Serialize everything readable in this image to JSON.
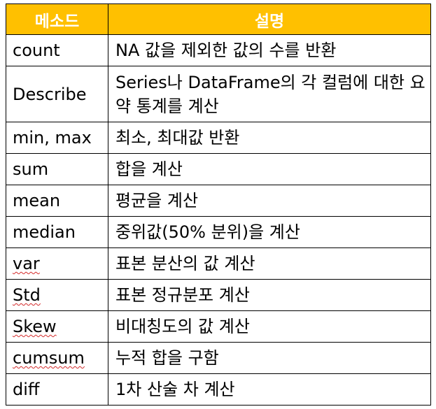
{
  "header": {
    "method": "메소드",
    "description": "설명"
  },
  "rows": [
    {
      "method": "count",
      "description": "NA 값을 제외한 값의 수를 반환"
    },
    {
      "method": "Describe",
      "description": "Series나 DataFrame의 각 컬럼에 대한 요약 통계를 계산"
    },
    {
      "method": "min, max",
      "description": "최소, 최대값 반환"
    },
    {
      "method": "sum",
      "description": "합을 계산"
    },
    {
      "method": "mean",
      "description": "평균을 계산"
    },
    {
      "method": "median",
      "description": "중위값(50% 분위)을 계산"
    },
    {
      "method": "var",
      "description": "표본 분산의 값 계산"
    },
    {
      "method": "Std",
      "description": "표본 정규분포 계산"
    },
    {
      "method": "Skew",
      "description": "비대칭도의 값 계산"
    },
    {
      "method": "cumsum",
      "description": "누적 합을 구함"
    },
    {
      "method": "diff",
      "description": "1차 산술 차 계산"
    }
  ],
  "colors": {
    "header_background": "#ffc000",
    "header_text": "#ffffff",
    "border": "#000000",
    "spellcheck_underline": "#d42b2b"
  }
}
